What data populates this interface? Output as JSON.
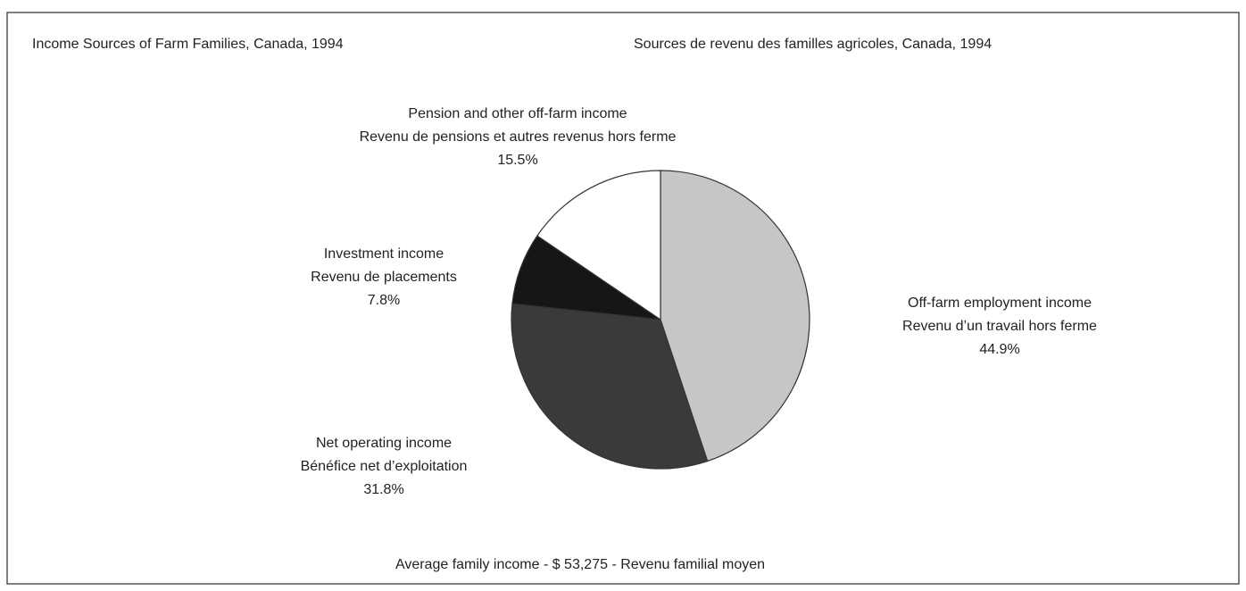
{
  "chart_data": {
    "type": "pie",
    "title": "Income Sources of Farm Families, Canada, 1994",
    "title_fr": "Sources de revenu des familles agricoles, Canada, 1994",
    "categories": [
      "Off-farm employment income",
      "Net operating income",
      "Investment income",
      "Pension and other off-farm income"
    ],
    "categories_fr": [
      "Revenu d’un travail hors ferme",
      "Bénéfice net d’exploitation",
      "Revenu de placements",
      "Revenu de pensions et autres revenus hors ferme"
    ],
    "values": [
      44.9,
      31.8,
      7.8,
      15.5
    ],
    "value_labels": [
      "44.9%",
      "31.8%",
      "7.8%",
      "15.5%"
    ],
    "colors": [
      "#c6c6c6",
      "#3a3a3a",
      "#161616",
      "#ffffff"
    ],
    "note": "Average family income - $ 53,275 - Revenu familial moyen"
  }
}
